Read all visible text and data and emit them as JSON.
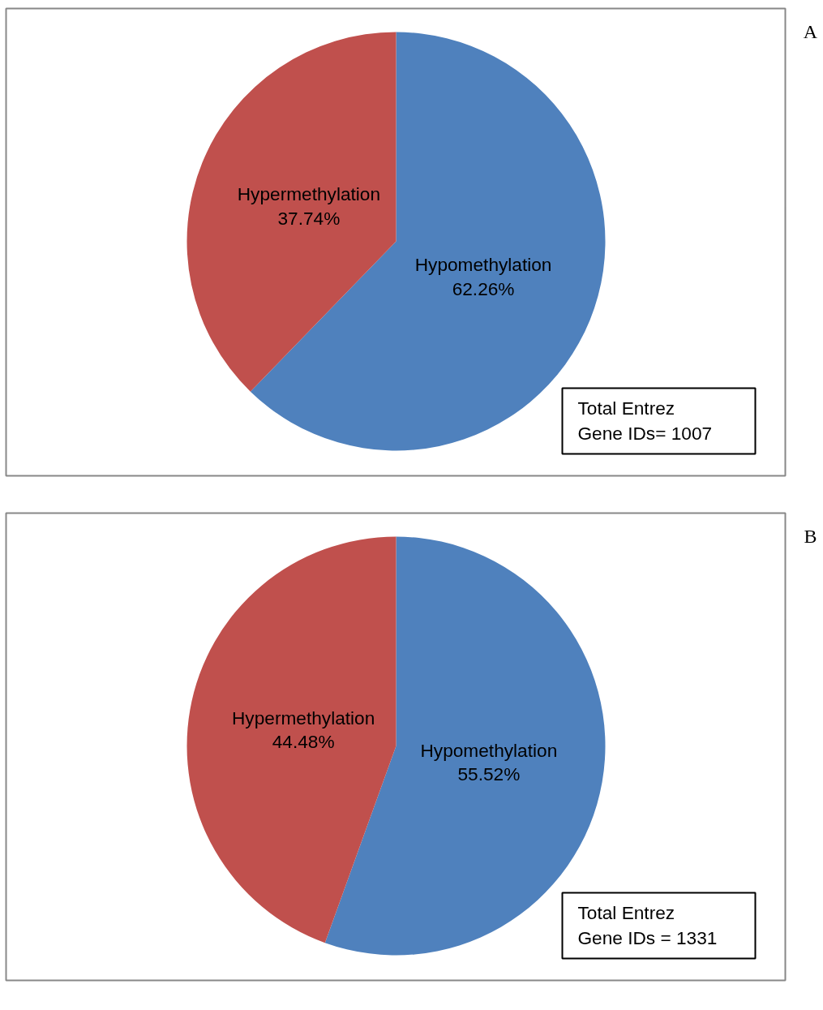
{
  "chart_data": [
    {
      "type": "pie",
      "categories": [
        "Hypomethylation",
        "Hypermethylation"
      ],
      "values": [
        62.26,
        37.74
      ],
      "colors": [
        "#4f81bd",
        "#c0504d"
      ],
      "value_labels": [
        "62.26%",
        "37.74%"
      ],
      "legend": false,
      "annotations": [
        "Total Entrez\nGene IDs= 1007",
        "A"
      ]
    },
    {
      "type": "pie",
      "categories": [
        "Hypomethylation",
        "Hypermethylation"
      ],
      "values": [
        55.52,
        44.48
      ],
      "colors": [
        "#4f81bd",
        "#c0504d"
      ],
      "value_labels": [
        "55.52%",
        "44.48%"
      ],
      "legend": false,
      "annotations": [
        "Total Entrez\nGene IDs = 1331",
        "B"
      ]
    }
  ]
}
